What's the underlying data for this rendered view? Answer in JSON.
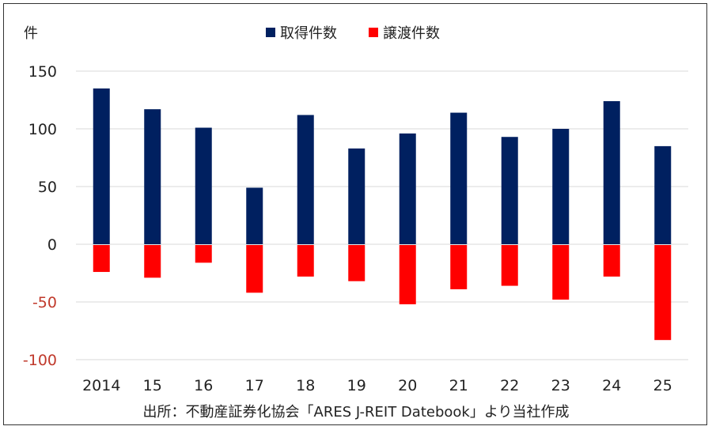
{
  "chart_data": {
    "type": "bar",
    "unit_label": "件",
    "categories": [
      "2014",
      "15",
      "16",
      "17",
      "18",
      "19",
      "20",
      "21",
      "22",
      "23",
      "24",
      "25"
    ],
    "series": [
      {
        "name": "取得件数",
        "color": "#002060",
        "values": [
          135,
          117,
          101,
          49,
          112,
          83,
          96,
          114,
          93,
          100,
          124,
          85
        ]
      },
      {
        "name": "譲渡件数",
        "color": "#ff0000",
        "values": [
          -24,
          -29,
          -16,
          -42,
          -28,
          -32,
          -52,
          -39,
          -36,
          -48,
          -28,
          -83
        ]
      }
    ],
    "ylim": [
      -100,
      150
    ],
    "yticks": [
      150,
      100,
      50,
      0,
      -50,
      -100
    ],
    "negative_tick_color": "#c0392b",
    "grid": true,
    "legend_position": "top-center",
    "source": "出所：不動産証券化協会「ARES J-REIT Datebook」より当社作成"
  }
}
